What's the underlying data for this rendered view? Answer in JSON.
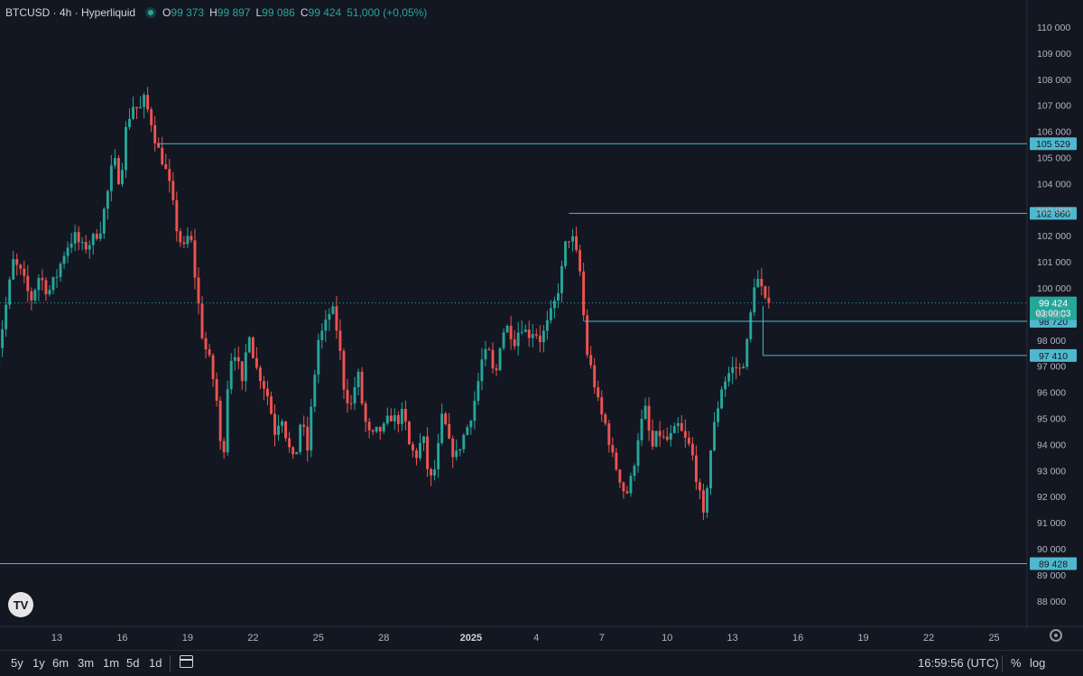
{
  "header": {
    "symbol": "BTCUSD · 4h · Hyperliquid",
    "open_label": "O",
    "open": "99 373",
    "high_label": "H",
    "high": "99 897",
    "low_label": "L",
    "low": "99 086",
    "close_label": "C",
    "close": "99 424",
    "change": "51,000 (+0,05%)"
  },
  "chart_data": {
    "type": "candlestick",
    "y_ticks": [
      88000,
      89000,
      90000,
      91000,
      92000,
      93000,
      94000,
      95000,
      96000,
      97000,
      98000,
      99000,
      100000,
      101000,
      102000,
      103000,
      104000,
      105000,
      106000,
      107000,
      108000,
      109000,
      110000
    ],
    "y_tick_labels": [
      "88 000",
      "89 000",
      "90 000",
      "91 000",
      "92 000",
      "93 000",
      "94 000",
      "95 000",
      "96 000",
      "97 000",
      "98 000",
      "99 000",
      "100 000",
      "101 000",
      "102 000",
      "103 000",
      "104 000",
      "105 000",
      "106 000",
      "107 000",
      "108 000",
      "109 000",
      "110 000"
    ],
    "x_labels": [
      {
        "day": 13,
        "label": "13"
      },
      {
        "day": 16,
        "label": "16"
      },
      {
        "day": 19,
        "label": "19"
      },
      {
        "day": 22,
        "label": "22"
      },
      {
        "day": 25,
        "label": "25"
      },
      {
        "day": 28,
        "label": "28"
      },
      {
        "day": 32,
        "label": "2025",
        "bold": true
      },
      {
        "day": 35,
        "label": "4"
      },
      {
        "day": 38,
        "label": "7"
      },
      {
        "day": 41,
        "label": "10"
      },
      {
        "day": 44,
        "label": "13"
      },
      {
        "day": 47,
        "label": "16"
      },
      {
        "day": 50,
        "label": "19"
      },
      {
        "day": 53,
        "label": "22"
      },
      {
        "day": 56,
        "label": "25"
      }
    ],
    "path_points": [
      [
        10.0,
        96500
      ],
      [
        10.5,
        98500
      ],
      [
        11.0,
        101000
      ],
      [
        11.4,
        100500
      ],
      [
        11.8,
        99500
      ],
      [
        12.2,
        100500
      ],
      [
        12.6,
        99800
      ],
      [
        13.0,
        100500
      ],
      [
        13.4,
        101500
      ],
      [
        13.8,
        102000
      ],
      [
        14.2,
        101500
      ],
      [
        14.6,
        101800
      ],
      [
        15.0,
        102300
      ],
      [
        15.3,
        103500
      ],
      [
        15.6,
        105000
      ],
      [
        15.9,
        104000
      ],
      [
        16.2,
        106300
      ],
      [
        16.5,
        107000
      ],
      [
        16.8,
        106800
      ],
      [
        17.0,
        107200
      ],
      [
        17.3,
        106500
      ],
      [
        17.6,
        105400
      ],
      [
        17.9,
        104800
      ],
      [
        18.2,
        103800
      ],
      [
        18.5,
        102300
      ],
      [
        18.8,
        101400
      ],
      [
        19.1,
        102200
      ],
      [
        19.4,
        100000
      ],
      [
        19.7,
        98000
      ],
      [
        20.0,
        97200
      ],
      [
        20.3,
        96000
      ],
      [
        20.6,
        93000
      ],
      [
        20.9,
        97200
      ],
      [
        21.2,
        97600
      ],
      [
        21.5,
        96200
      ],
      [
        21.8,
        98500
      ],
      [
        22.1,
        97000
      ],
      [
        22.4,
        96500
      ],
      [
        22.7,
        95800
      ],
      [
        23.0,
        94500
      ],
      [
        23.3,
        95200
      ],
      [
        23.6,
        94000
      ],
      [
        23.9,
        93200
      ],
      [
        24.2,
        95000
      ],
      [
        24.5,
        93800
      ],
      [
        24.8,
        96500
      ],
      [
        25.0,
        98000
      ],
      [
        25.3,
        98500
      ],
      [
        25.6,
        99300
      ],
      [
        25.9,
        98200
      ],
      [
        26.2,
        96000
      ],
      [
        26.5,
        95500
      ],
      [
        26.8,
        96800
      ],
      [
        27.1,
        95000
      ],
      [
        27.4,
        94200
      ],
      [
        27.7,
        94500
      ],
      [
        28.0,
        94600
      ],
      [
        28.3,
        95100
      ],
      [
        28.6,
        94900
      ],
      [
        28.9,
        95200
      ],
      [
        29.2,
        93800
      ],
      [
        29.5,
        93600
      ],
      [
        29.8,
        94300
      ],
      [
        30.1,
        92500
      ],
      [
        30.4,
        93200
      ],
      [
        30.7,
        95200
      ],
      [
        31.0,
        94000
      ],
      [
        31.3,
        93500
      ],
      [
        31.6,
        94200
      ],
      [
        31.9,
        94800
      ],
      [
        32.2,
        95800
      ],
      [
        32.5,
        97200
      ],
      [
        32.8,
        97600
      ],
      [
        33.1,
        96400
      ],
      [
        33.4,
        98300
      ],
      [
        33.7,
        98500
      ],
      [
        34.0,
        98000
      ],
      [
        34.3,
        98600
      ],
      [
        34.6,
        98200
      ],
      [
        34.9,
        98400
      ],
      [
        35.2,
        98000
      ],
      [
        35.5,
        98600
      ],
      [
        35.8,
        99300
      ],
      [
        36.1,
        100300
      ],
      [
        36.4,
        102000
      ],
      [
        36.7,
        101800
      ],
      [
        37.0,
        100600
      ],
      [
        37.3,
        97600
      ],
      [
        37.6,
        96600
      ],
      [
        37.9,
        95300
      ],
      [
        38.2,
        94700
      ],
      [
        38.5,
        93500
      ],
      [
        38.8,
        92800
      ],
      [
        39.1,
        92000
      ],
      [
        39.4,
        92800
      ],
      [
        39.7,
        94500
      ],
      [
        40.0,
        95300
      ],
      [
        40.3,
        93800
      ],
      [
        40.6,
        94500
      ],
      [
        40.9,
        94100
      ],
      [
        41.2,
        94300
      ],
      [
        41.5,
        94700
      ],
      [
        41.8,
        94200
      ],
      [
        42.1,
        93800
      ],
      [
        42.4,
        92500
      ],
      [
        42.7,
        91000
      ],
      [
        42.8,
        92200
      ],
      [
        43.0,
        93800
      ],
      [
        43.2,
        94900
      ],
      [
        43.5,
        96200
      ],
      [
        43.8,
        96700
      ],
      [
        44.1,
        97000
      ],
      [
        44.4,
        96800
      ],
      [
        44.7,
        98000
      ],
      [
        45.0,
        100200
      ],
      [
        45.2,
        100300
      ],
      [
        45.5,
        99400
      ],
      [
        45.7,
        99424
      ]
    ],
    "h_lines": [
      {
        "value": 105529,
        "label": "105 529",
        "from_day": 17.6
      },
      {
        "value": 102860,
        "label": "102 860",
        "from_day": 36.5
      },
      {
        "value": 98720,
        "label": "98 720",
        "from_day": 37.2
      },
      {
        "value": 97410,
        "label": "97 410",
        "from_day": 45.4,
        "connector_from": 99300
      },
      {
        "value": 89428,
        "label": "89 428",
        "from_day": 0
      }
    ],
    "last_price": {
      "value": 99424,
      "label": "99 424",
      "countdown": "03:00:03"
    },
    "colors": {
      "up": "#26a69a",
      "down": "#ef5350",
      "level": "#4fb8cc",
      "bg": "#131722"
    }
  },
  "toolbar": {
    "ranges": [
      "5y",
      "1y",
      "6m",
      "3m",
      "1m",
      "5d",
      "1d"
    ],
    "time": "16:59:56 (UTC)",
    "percent": "%",
    "log": "log"
  },
  "logo_text": "TV"
}
